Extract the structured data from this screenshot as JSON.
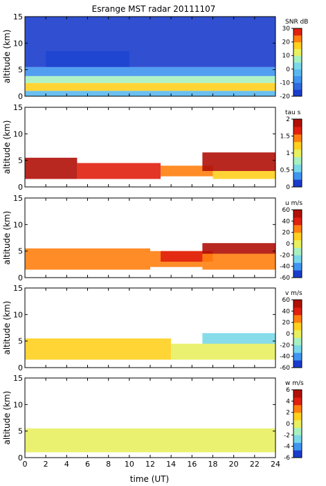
{
  "chart_data": {
    "type": "heatmap",
    "title": "Esrange MST radar 20111107",
    "xlabel": "time (UT)",
    "xlim": [
      0,
      24
    ],
    "xticks": [
      "0",
      "2",
      "4",
      "6",
      "8",
      "10",
      "12",
      "14",
      "16",
      "18",
      "20",
      "22",
      "24"
    ],
    "panels": [
      {
        "ylabel": "altitude (km)",
        "ylim": [
          0,
          15
        ],
        "yticks": [
          "0",
          "5",
          "10",
          "15"
        ],
        "colorbar": {
          "label": "SNR dB",
          "range": [
            -20,
            30
          ],
          "ticks": [
            "-20",
            "-10",
            "0",
            "10",
            "20",
            "30"
          ],
          "colors": [
            "#1a3ccc",
            "#2f6ae0",
            "#3f95f0",
            "#5ab8f0",
            "#7ad8e8",
            "#a8f0c0",
            "#e8f060",
            "#ffd020",
            "#ff8010",
            "#e02010"
          ]
        },
        "features": [
          {
            "t": [
              0,
              24
            ],
            "alt": [
              1.0,
              2.5
            ],
            "level": 18
          },
          {
            "t": [
              0,
              24
            ],
            "alt": [
              2.5,
              3.8
            ],
            "level": 8
          },
          {
            "t": [
              0,
              24
            ],
            "alt": [
              0,
              1.0
            ],
            "level": -2
          },
          {
            "t": [
              0,
              24
            ],
            "alt": [
              3.8,
              5.5
            ],
            "level": -8
          },
          {
            "t": [
              2,
              10
            ],
            "alt": [
              5.5,
              8.5
            ],
            "level": -10
          },
          {
            "t": [
              0,
              24
            ],
            "alt": [
              5.5,
              15
            ],
            "level": -17
          }
        ]
      },
      {
        "ylabel": "altitude (km)",
        "ylim": [
          0,
          15
        ],
        "yticks": [
          "0",
          "5",
          "10",
          "15"
        ],
        "colorbar": {
          "label": "tau s",
          "range": [
            0,
            2
          ],
          "ticks": [
            "0",
            "0.5",
            "1",
            "1.5",
            "2"
          ],
          "colors": [
            "#1a3ccc",
            "#3f95f0",
            "#7ad8e8",
            "#a8f0c0",
            "#e8f060",
            "#ffd020",
            "#ff8010",
            "#e02010",
            "#b01008"
          ]
        },
        "features": [
          {
            "t": [
              0,
              5
            ],
            "alt": [
              1.5,
              5.5
            ],
            "level": 1.9
          },
          {
            "t": [
              5,
              13
            ],
            "alt": [
              1.5,
              4.5
            ],
            "level": 1.6
          },
          {
            "t": [
              13,
              18
            ],
            "alt": [
              2,
              4
            ],
            "level": 1.4
          },
          {
            "t": [
              17,
              24
            ],
            "alt": [
              3,
              6.5
            ],
            "level": 1.9
          },
          {
            "t": [
              18,
              24
            ],
            "alt": [
              1.5,
              3
            ],
            "level": 1.2
          }
        ]
      },
      {
        "ylabel": "altitude (km)",
        "ylim": [
          0,
          15
        ],
        "yticks": [
          "0",
          "5",
          "10",
          "15"
        ],
        "colorbar": {
          "label": "u m/s",
          "range": [
            -60,
            60
          ],
          "ticks": [
            "-60",
            "-40",
            "-20",
            "0",
            "20",
            "40",
            "60"
          ],
          "colors": [
            "#1a3ccc",
            "#3f95f0",
            "#7ad8e8",
            "#a8f0c0",
            "#e8f060",
            "#ffd020",
            "#ff8010",
            "#e02010",
            "#b01008"
          ]
        },
        "features": [
          {
            "t": [
              0,
              12
            ],
            "alt": [
              1.5,
              5.5
            ],
            "level": 20
          },
          {
            "t": [
              12,
              17
            ],
            "alt": [
              2,
              5
            ],
            "level": 30
          },
          {
            "t": [
              13,
              18
            ],
            "alt": [
              3,
              5
            ],
            "level": 45
          },
          {
            "t": [
              17,
              24
            ],
            "alt": [
              4.5,
              6.5
            ],
            "level": 55
          },
          {
            "t": [
              17,
              24
            ],
            "alt": [
              1.5,
              4.5
            ],
            "level": 28
          }
        ]
      },
      {
        "ylabel": "altitude (km)",
        "ylim": [
          0,
          15
        ],
        "yticks": [
          "0",
          "5",
          "10",
          "15"
        ],
        "colorbar": {
          "label": "v m/s",
          "range": [
            -60,
            60
          ],
          "ticks": [
            "-60",
            "-40",
            "-20",
            "0",
            "20",
            "40",
            "60"
          ],
          "colors": [
            "#1a3ccc",
            "#3f95f0",
            "#7ad8e8",
            "#a8f0c0",
            "#e8f060",
            "#ffd020",
            "#ff8010",
            "#e02010",
            "#b01008"
          ]
        },
        "features": [
          {
            "t": [
              0,
              14
            ],
            "alt": [
              1.5,
              5.5
            ],
            "level": 10
          },
          {
            "t": [
              14,
              24
            ],
            "alt": [
              1.5,
              4.5
            ],
            "level": 0
          },
          {
            "t": [
              17,
              24
            ],
            "alt": [
              4.5,
              6.5
            ],
            "level": -25
          }
        ]
      },
      {
        "ylabel": "altitude (km)",
        "ylim": [
          0,
          15
        ],
        "yticks": [
          "0",
          "5",
          "10",
          "15"
        ],
        "colorbar": {
          "label": "w m/s",
          "range": [
            -6,
            6
          ],
          "ticks": [
            "-6",
            "-4",
            "-2",
            "0",
            "2",
            "4",
            "6"
          ],
          "colors": [
            "#1a3ccc",
            "#3f95f0",
            "#7ad8e8",
            "#a8f0c0",
            "#e8f060",
            "#ffd020",
            "#ff8010",
            "#e02010",
            "#b01008"
          ]
        },
        "features": [
          {
            "t": [
              0,
              12
            ],
            "alt": [
              1.0,
              5.5
            ],
            "level": 0.5
          },
          {
            "t": [
              12,
              24
            ],
            "alt": [
              1.0,
              5.5
            ],
            "level": -0.5
          }
        ]
      }
    ]
  }
}
